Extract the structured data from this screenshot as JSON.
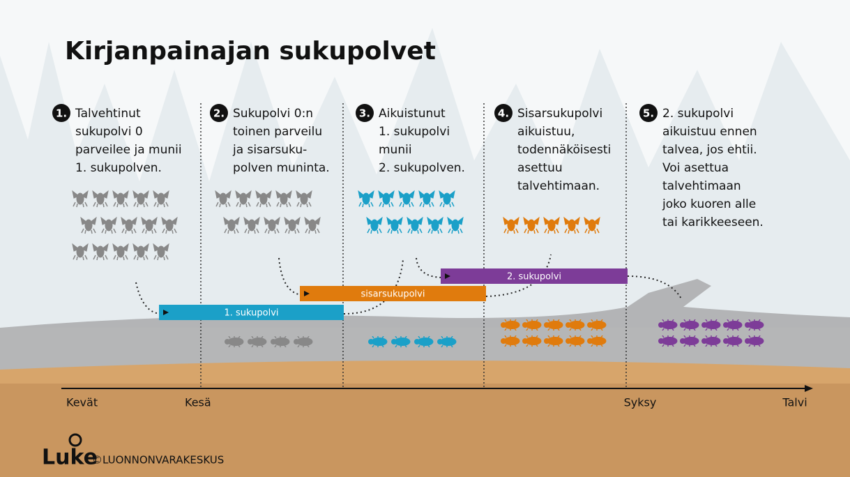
{
  "header": {
    "title": "Kirjanpainajan sukupolvet"
  },
  "stages": [
    {
      "number": "1.",
      "lines": [
        "Talvehtinut",
        "sukupolvi 0",
        "parveilee ja munii",
        "1. sukupolven."
      ]
    },
    {
      "number": "2.",
      "lines": [
        "Sukupolvi 0:n",
        "toinen parveilu",
        "ja sisarsuku-",
        "polven muninta."
      ]
    },
    {
      "number": "3.",
      "lines": [
        "Aikuistunut",
        "1. sukupolvi",
        "munii",
        "2. sukupolven."
      ]
    },
    {
      "number": "4.",
      "lines": [
        "Sisarsukupolvi",
        "aikuistuu,",
        "todennäköisesti",
        "asettuu",
        "talvehtimaan."
      ]
    },
    {
      "number": "5.",
      "lines": [
        "2. sukupolvi",
        "aikuistuu ennen",
        "talvea, jos ehtii.",
        "Voi asettua",
        "talvehtimaan",
        "joko kuoren alle",
        "tai karikkeeseen."
      ]
    }
  ],
  "bars": [
    "1. sukupolvi",
    "sisarsukupolvi",
    "2. sukupolvi"
  ],
  "timeline": [
    "Kevät",
    "Kesä",
    "Syksy",
    "Talvi"
  ],
  "footer": {
    "logo": "Luke",
    "copyright": "©LUONNONVARAKESKUS"
  }
}
